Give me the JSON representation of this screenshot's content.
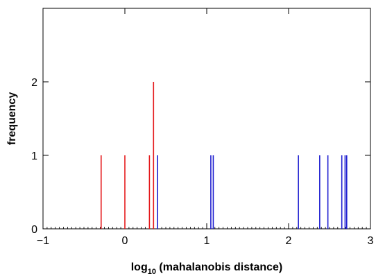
{
  "chart_data": {
    "type": "bar",
    "title": "",
    "xlabel_main": "log",
    "xlabel_subscript": "10",
    "xlabel_rest": " (mahalanobis distance)",
    "ylabel": "frequency",
    "xlim": [
      -1,
      3
    ],
    "ylim": [
      0,
      3
    ],
    "xticks": [
      -1,
      0,
      1,
      2,
      3
    ],
    "yticks": [
      0,
      1,
      2
    ],
    "xtick_labels": [
      "−1",
      "0",
      "1",
      "2",
      "3"
    ],
    "ytick_labels": [
      "0",
      "1",
      "2"
    ],
    "grid": false,
    "legend": "none",
    "series": [
      {
        "color": "#e41a1c",
        "points": [
          {
            "x": -0.29,
            "y": 1
          },
          {
            "x": 0.0,
            "y": 1
          },
          {
            "x": 0.3,
            "y": 1
          },
          {
            "x": 0.35,
            "y": 2
          }
        ]
      },
      {
        "color": "#1f1fd0",
        "points": [
          {
            "x": 0.4,
            "y": 1
          },
          {
            "x": 1.05,
            "y": 1
          },
          {
            "x": 1.08,
            "y": 1
          },
          {
            "x": 2.12,
            "y": 1
          },
          {
            "x": 2.38,
            "y": 1
          },
          {
            "x": 2.48,
            "y": 1
          },
          {
            "x": 2.65,
            "y": 1
          },
          {
            "x": 2.69,
            "y": 1
          },
          {
            "x": 2.71,
            "y": 1
          }
        ]
      }
    ]
  }
}
